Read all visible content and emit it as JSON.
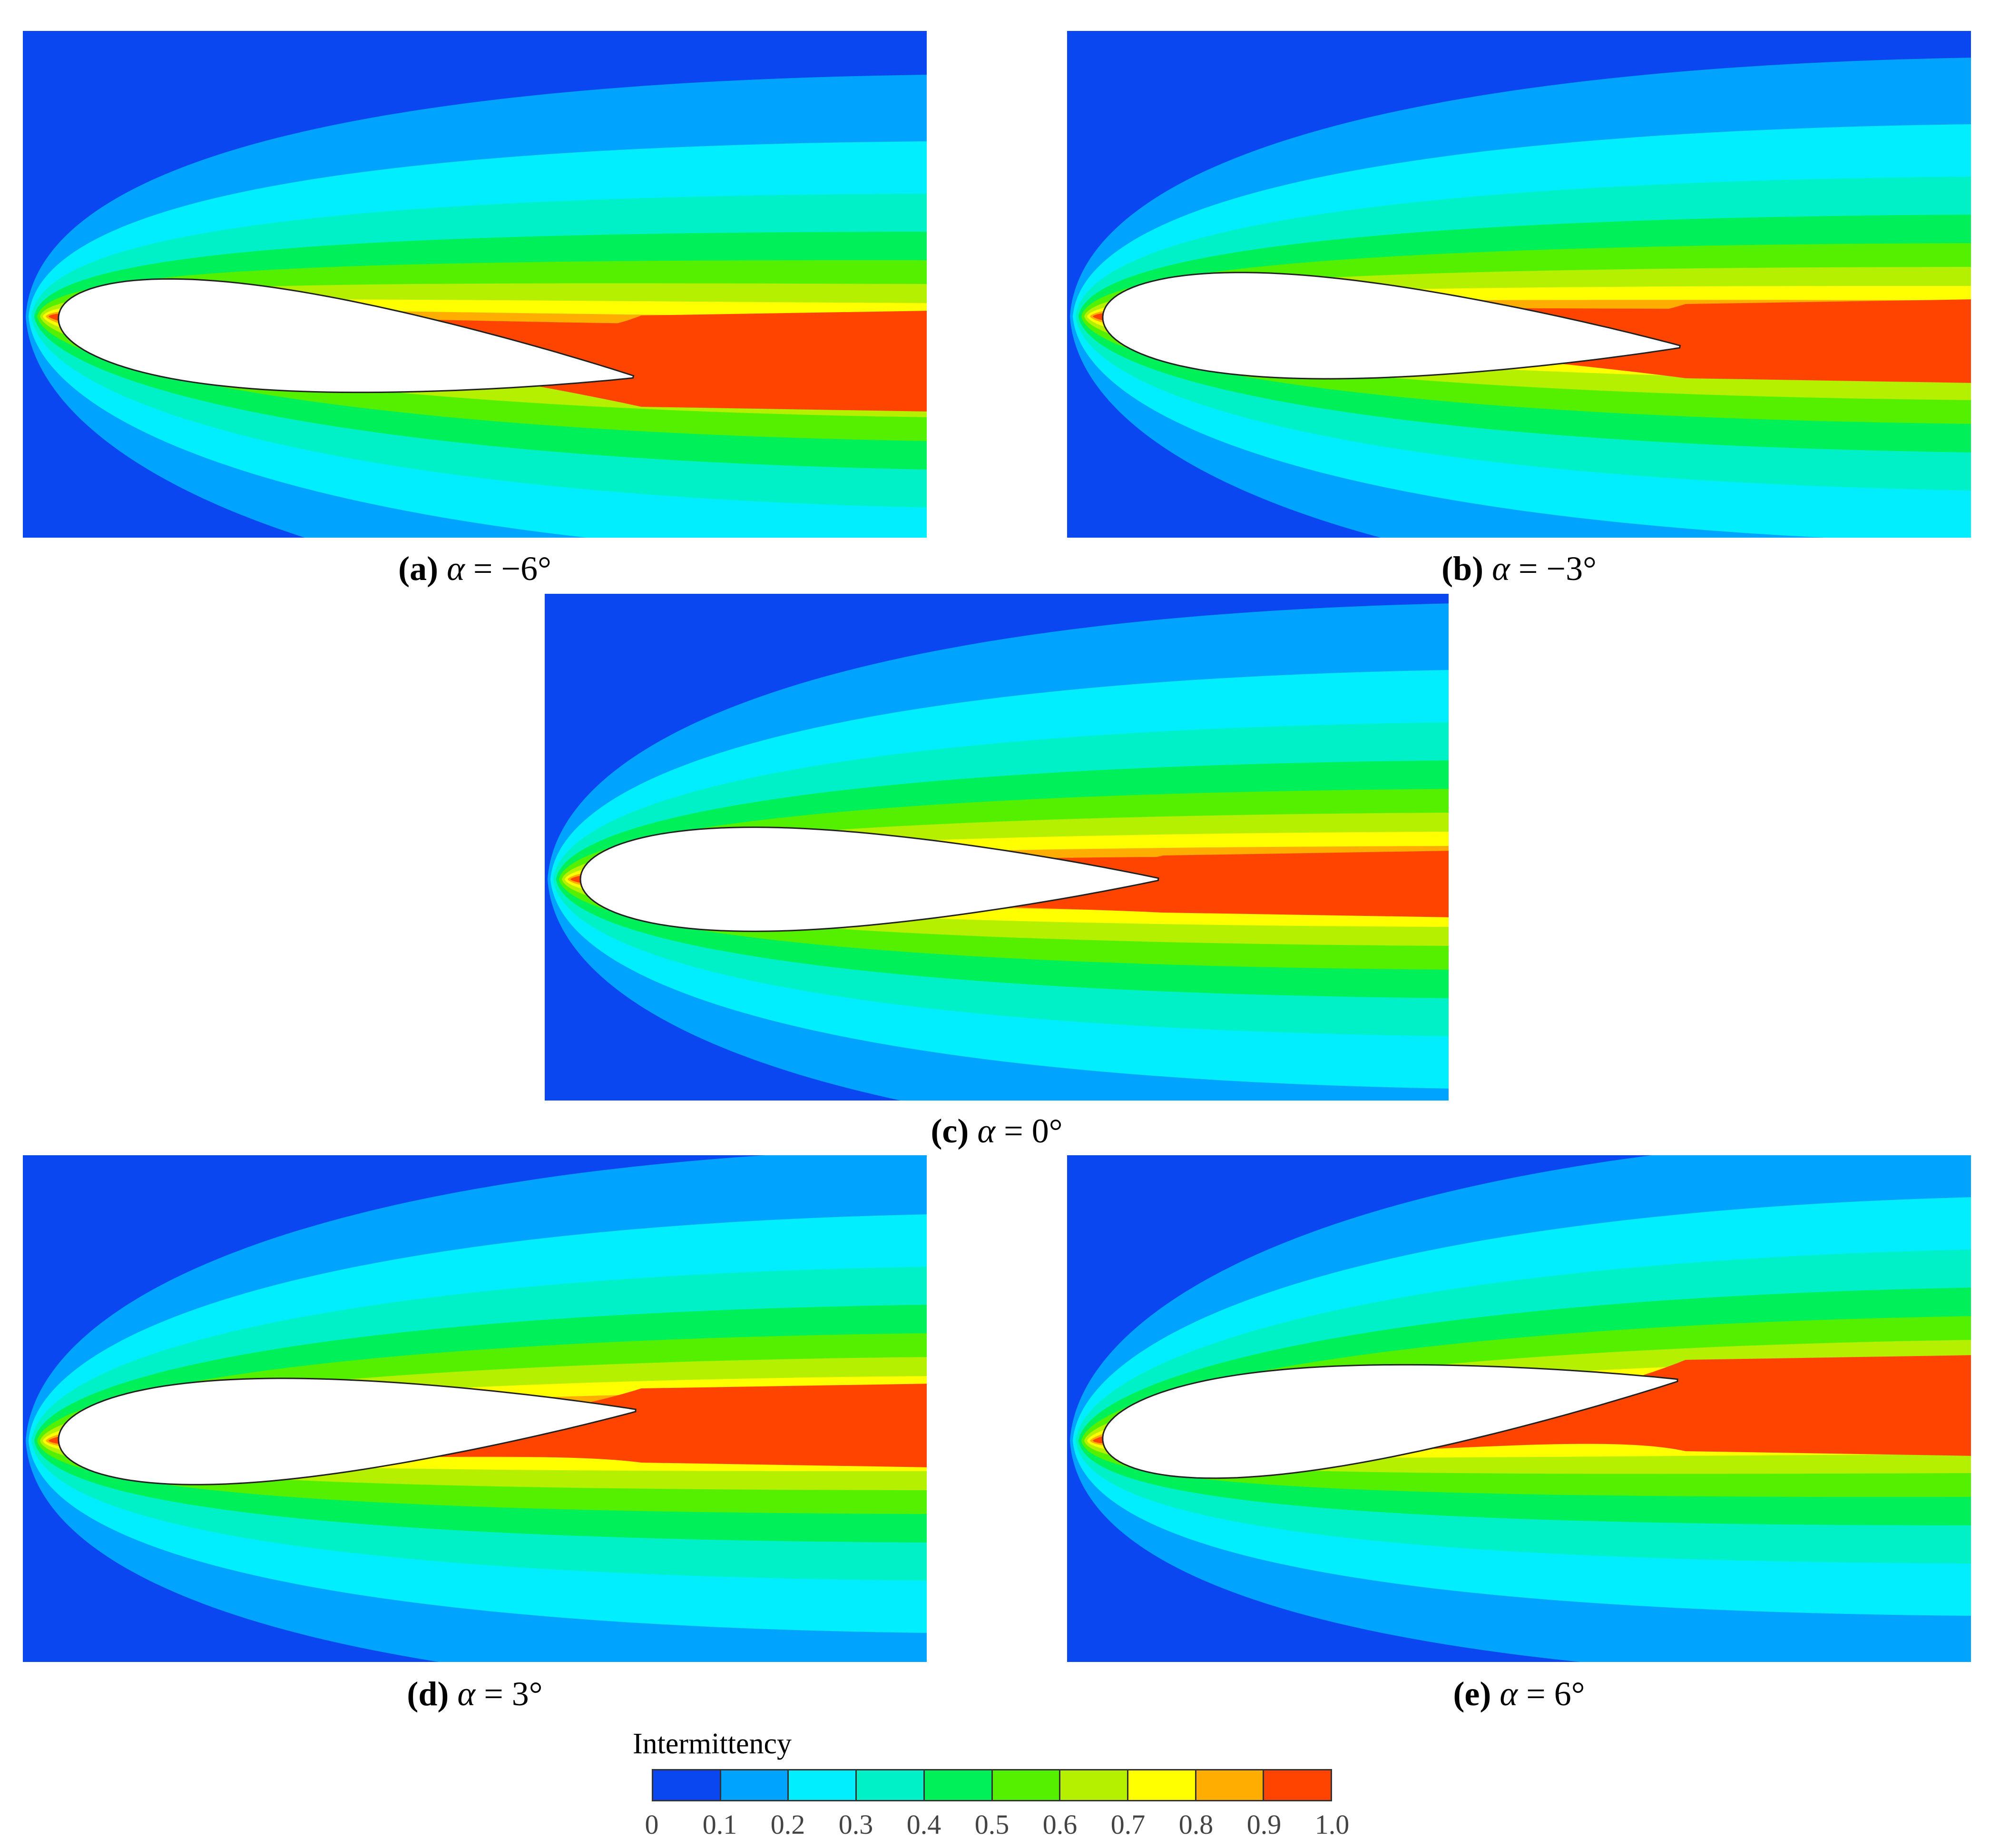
{
  "panels": [
    {
      "id": "a",
      "letter": "(a)",
      "symbol": "α",
      "value": " = −6°",
      "aoa": -6
    },
    {
      "id": "b",
      "letter": "(b)",
      "symbol": "α",
      "value": " = −3°",
      "aoa": -3
    },
    {
      "id": "c",
      "letter": "(c)",
      "symbol": "α",
      "value": " = 0°",
      "aoa": 0
    },
    {
      "id": "d",
      "letter": "(d)",
      "symbol": "α",
      "value": " = 3°",
      "aoa": 3
    },
    {
      "id": "e",
      "letter": "(e)",
      "symbol": "α",
      "value": " = 6°",
      "aoa": 6
    }
  ],
  "legend": {
    "title": "Intermittency",
    "ticks": [
      "0",
      "0.1",
      "0.2",
      "0.3",
      "0.4",
      "0.5",
      "0.6",
      "0.7",
      "0.8",
      "0.9",
      "1.0"
    ],
    "colors": [
      "#0a47f0",
      "#00a4ff",
      "#00eeff",
      "#00f0c8",
      "#00f05a",
      "#55f000",
      "#b4f000",
      "#ffff00",
      "#ffae00",
      "#ff4400"
    ]
  }
}
